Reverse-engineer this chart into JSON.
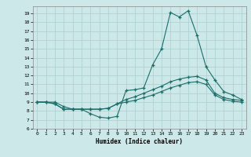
{
  "title": "",
  "xlabel": "Humidex (Indice chaleur)",
  "ylabel": "",
  "bg_color": "#cce8e8",
  "grid_color": "#aacece",
  "line_color": "#1a6e6a",
  "xlim": [
    -0.5,
    23.5
  ],
  "ylim": [
    6,
    19.8
  ],
  "yticks": [
    6,
    7,
    8,
    9,
    10,
    11,
    12,
    13,
    14,
    15,
    16,
    17,
    18,
    19
  ],
  "xticks": [
    0,
    1,
    2,
    3,
    4,
    5,
    6,
    7,
    8,
    9,
    10,
    11,
    12,
    13,
    14,
    15,
    16,
    17,
    18,
    19,
    20,
    21,
    22,
    23
  ],
  "line1_x": [
    0,
    1,
    2,
    3,
    4,
    5,
    6,
    7,
    8,
    9,
    10,
    11,
    12,
    13,
    14,
    15,
    16,
    17,
    18,
    19,
    20,
    21,
    22,
    23
  ],
  "line1_y": [
    9.0,
    9.0,
    9.0,
    8.5,
    8.2,
    8.2,
    7.7,
    7.3,
    7.2,
    7.4,
    10.3,
    10.4,
    10.6,
    13.2,
    15.0,
    19.1,
    18.6,
    19.3,
    16.5,
    13.0,
    11.5,
    10.2,
    9.8,
    9.3
  ],
  "line2_x": [
    0,
    1,
    2,
    3,
    4,
    5,
    6,
    7,
    8,
    9,
    10,
    11,
    12,
    13,
    14,
    15,
    16,
    17,
    18,
    19,
    20,
    21,
    22,
    23
  ],
  "line2_y": [
    9.0,
    9.0,
    8.8,
    8.2,
    8.2,
    8.2,
    8.2,
    8.2,
    8.3,
    8.8,
    9.3,
    9.6,
    10.0,
    10.4,
    10.8,
    11.3,
    11.6,
    11.8,
    11.9,
    11.5,
    10.0,
    9.5,
    9.3,
    9.2
  ],
  "line3_x": [
    0,
    1,
    2,
    3,
    4,
    5,
    6,
    7,
    8,
    9,
    10,
    11,
    12,
    13,
    14,
    15,
    16,
    17,
    18,
    19,
    20,
    21,
    22,
    23
  ],
  "line3_y": [
    9.0,
    9.0,
    8.8,
    8.2,
    8.2,
    8.2,
    8.2,
    8.2,
    8.3,
    8.8,
    9.0,
    9.2,
    9.5,
    9.8,
    10.2,
    10.6,
    10.9,
    11.2,
    11.3,
    11.0,
    9.8,
    9.3,
    9.1,
    9.0
  ]
}
